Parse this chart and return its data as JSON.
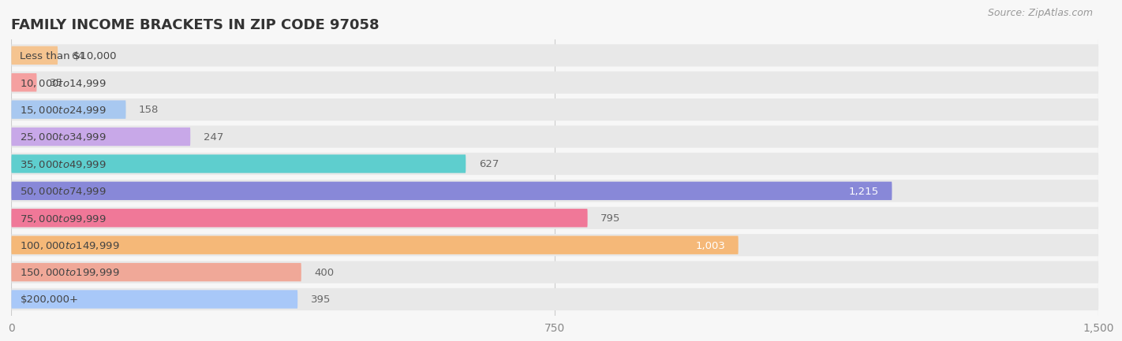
{
  "title": "FAMILY INCOME BRACKETS IN ZIP CODE 97058",
  "source": "Source: ZipAtlas.com",
  "categories": [
    "Less than $10,000",
    "$10,000 to $14,999",
    "$15,000 to $24,999",
    "$25,000 to $34,999",
    "$35,000 to $49,999",
    "$50,000 to $74,999",
    "$75,000 to $99,999",
    "$100,000 to $149,999",
    "$150,000 to $199,999",
    "$200,000+"
  ],
  "values": [
    64,
    35,
    158,
    247,
    627,
    1215,
    795,
    1003,
    400,
    395
  ],
  "bar_colors": [
    "#F5C490",
    "#F5A0A0",
    "#A8C8F0",
    "#C8A8E8",
    "#5ECECE",
    "#8888D8",
    "#F07898",
    "#F5B878",
    "#F0A898",
    "#A8C8F8"
  ],
  "xlim": [
    0,
    1500
  ],
  "xticks": [
    0,
    750,
    1500
  ],
  "xtick_labels": [
    "0",
    "750",
    "1,500"
  ],
  "background_color": "#f7f7f7",
  "bar_bg_color": "#e8e8e8",
  "title_fontsize": 13,
  "label_fontsize": 9.5,
  "value_fontsize": 9.5
}
